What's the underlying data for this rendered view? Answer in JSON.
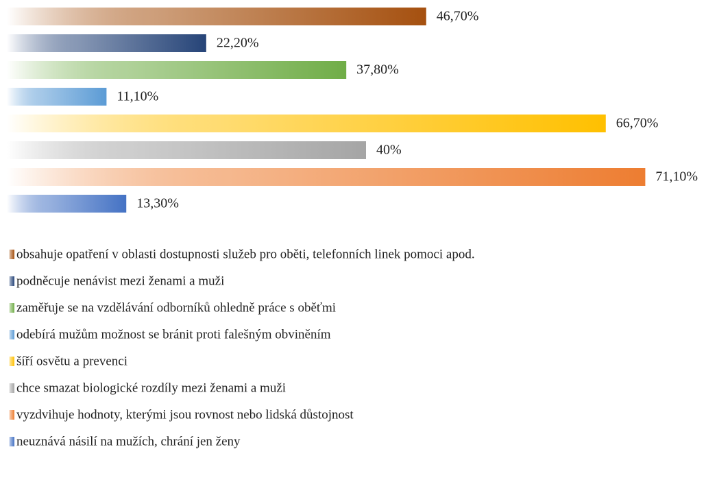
{
  "chart_data": {
    "type": "bar",
    "orientation": "horizontal",
    "series": [
      {
        "name": "obsahuje opatření v oblasti dostupnosti služeb pro oběti, telefonních linek pomoci apod.",
        "color": "#a5500f",
        "values": [
          46.7
        ],
        "value_labels": [
          "46,70%"
        ]
      },
      {
        "name": "podněcuje nenávist mezi ženami a muži",
        "color": "#264478",
        "values": [
          22.2
        ],
        "value_labels": [
          "22,20%"
        ]
      },
      {
        "name": "zaměřuje se na vzdělávání odborníků ohledně práce s oběťmi",
        "color": "#70ad47",
        "values": [
          37.8
        ],
        "value_labels": [
          "37,80%"
        ]
      },
      {
        "name": "odebírá mužům možnost se bránit proti falešným obviněním",
        "color": "#5b9bd5",
        "values": [
          11.1
        ],
        "value_labels": [
          "11,10%"
        ]
      },
      {
        "name": "šíří osvětu a prevenci",
        "color": "#ffc000",
        "values": [
          66.7
        ],
        "value_labels": [
          "66,70%"
        ]
      },
      {
        "name": "chce smazat biologické rozdíly mezi ženami a muži",
        "color": "#a5a5a5",
        "values": [
          40
        ],
        "value_labels": [
          "40%"
        ]
      },
      {
        "name": "vyzdvihuje hodnoty, kterými jsou rovnost nebo lidská důstojnost",
        "color": "#ed7d31",
        "values": [
          71.1
        ],
        "value_labels": [
          "71,10%"
        ]
      },
      {
        "name": "neuznává násilí na mužích, chrání jen ženy",
        "color": "#4472c4",
        "values": [
          13.3
        ],
        "value_labels": [
          "13,30%"
        ]
      }
    ]
  }
}
